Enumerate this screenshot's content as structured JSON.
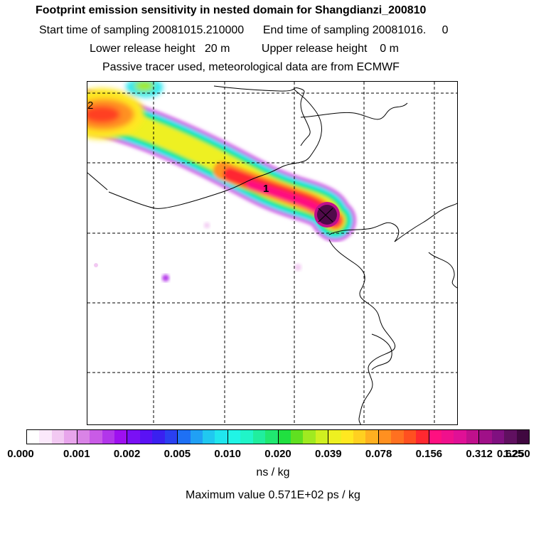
{
  "header": {
    "title": "Footprint emission sensitivity in nested domain for Shangdianzi_200810",
    "sampling": "Start time of sampling 20081015.210000      End time of sampling 20081016.     0",
    "release": "Lower release height   20 m          Upper release height    0 m",
    "tracer": "Passive tracer used, meteorological data are from ECMWF"
  },
  "map": {
    "labels": [
      "2",
      "1"
    ],
    "receptor_marker": "x"
  },
  "colorbar": {
    "ticks": [
      "0.000",
      "0.001",
      "0.002",
      "0.005",
      "0.010",
      "0.020",
      "0.039",
      "0.078",
      "0.156",
      "0.312",
      "0.625",
      "1.250"
    ],
    "colors": [
      [
        "#ffffff",
        "#fbe9fb",
        "#f2c9f2",
        "#e8a5ec"
      ],
      [
        "#d983e6",
        "#c95be6",
        "#b236ea",
        "#9e10f0"
      ],
      [
        "#7a10f5",
        "#5a12f5",
        "#3a20f0",
        "#2a40f0"
      ],
      [
        "#1e70f5",
        "#20a0f5",
        "#20c8f0",
        "#20e6ee"
      ],
      [
        "#20f5e6",
        "#20f5c8",
        "#20ee9e",
        "#20e870"
      ],
      [
        "#20e040",
        "#60e020",
        "#a0ea20",
        "#d0f020"
      ],
      [
        "#eef020",
        "#ffe820",
        "#ffd020",
        "#ffb020"
      ],
      [
        "#ff9020",
        "#ff7020",
        "#ff5020",
        "#ff2830"
      ],
      [
        "#ff1080",
        "#f0108c",
        "#e01096",
        "#c0108c"
      ],
      [
        "#a01088",
        "#801080",
        "#601060",
        "#400840"
      ]
    ],
    "unit": "ns / kg"
  },
  "footer": {
    "max_value": "Maximum value  0.571E+02 ps / kg"
  }
}
